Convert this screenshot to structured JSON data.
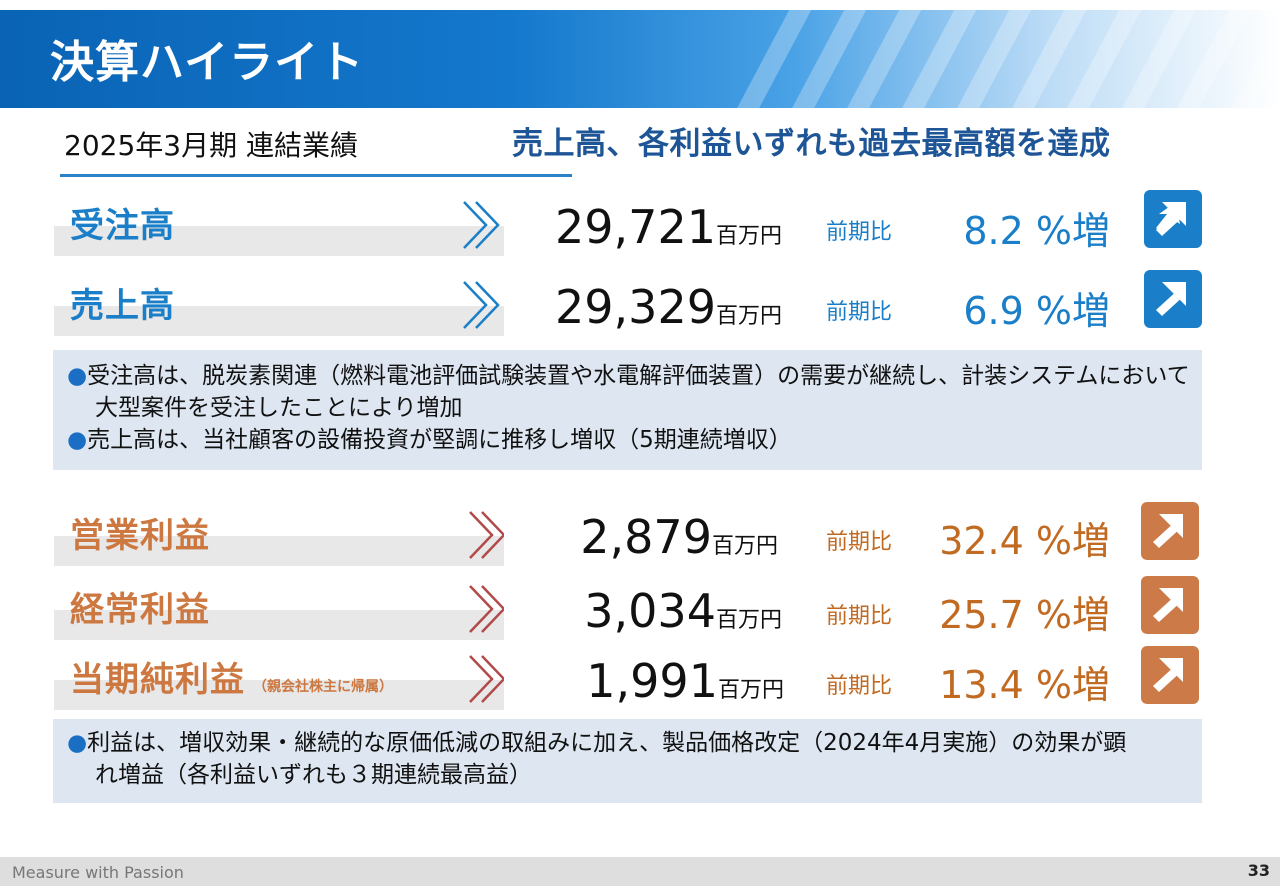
{
  "header": {
    "title": "決算ハイライト"
  },
  "period": "2025年3月期 連結業績",
  "headline": "売上高、各利益いずれも過去最高額を達成",
  "comparison_label": "前期比",
  "unit": "百万円",
  "rows": [
    {
      "label": "受注高",
      "sub": "",
      "value": "29,721",
      "pct": "8.2 %増"
    },
    {
      "label": "売上高",
      "sub": "",
      "value": "29,329",
      "pct": "6.9 %増"
    },
    {
      "label": "営業利益",
      "sub": "",
      "value": "2,879",
      "pct": "32.4 %増"
    },
    {
      "label": "経常利益",
      "sub": "",
      "value": "3,034",
      "pct": "25.7 %増"
    },
    {
      "label": "当期純利益",
      "sub": "（親会社株主に帰属）",
      "value": "1,991",
      "pct": "13.4 %増"
    }
  ],
  "notes_sales": [
    "受注高は、脱炭素関連（燃料電池評価試験装置や水電解評価装置）の需要が継続し、計装システムにおいて大型案件を受注したことにより増加",
    "売上高は、当社顧客の設備投資が堅調に推移し増収（5期連続増収）"
  ],
  "notes_profit": [
    "利益は、増収効果・継続的な原価低減の取組みに加え、製品価格改定（2024年4月実施）の効果が顕れ増益（各利益いずれも３期連続最高益）"
  ],
  "footer": {
    "brand": "Measure with Passion",
    "page": "33"
  },
  "colors": {
    "blue": "#1a7fc8",
    "orange": "#cc7a48",
    "navy": "#1e5596"
  }
}
